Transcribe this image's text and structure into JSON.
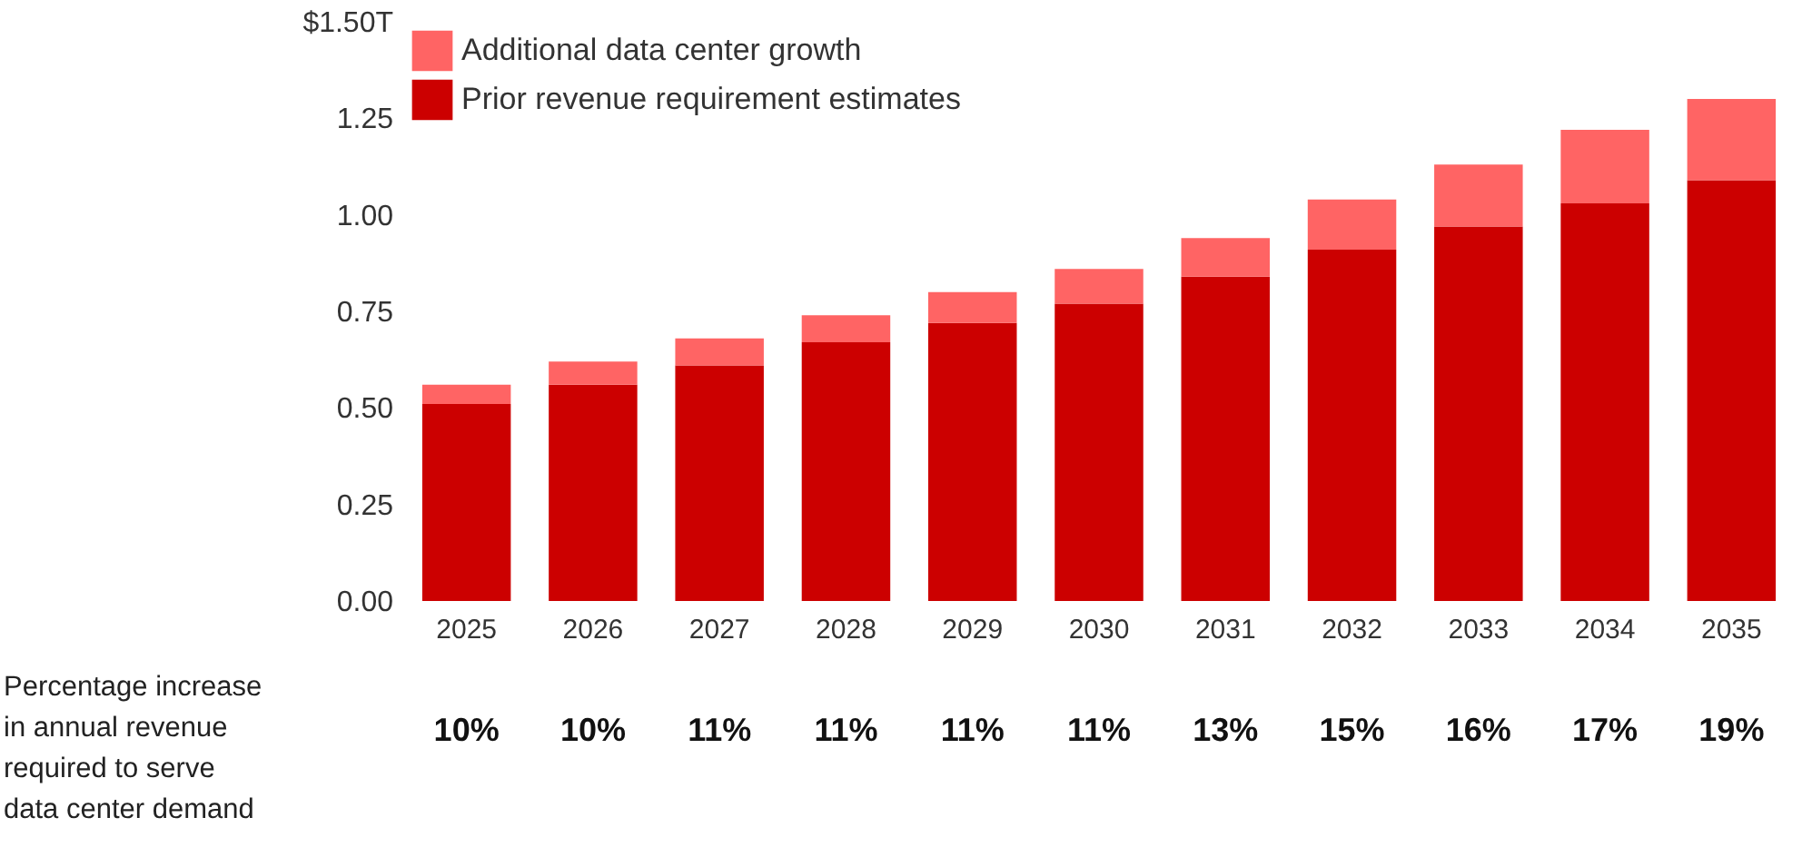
{
  "chart_data": {
    "type": "bar",
    "stacked": true,
    "legend": "top left",
    "grid": false,
    "categories": [
      "2025",
      "2026",
      "2027",
      "2028",
      "2029",
      "2030",
      "2031",
      "2032",
      "2033",
      "2034",
      "2035"
    ],
    "series": [
      {
        "name": "Prior revenue requirement estimates",
        "color": "#cc0000",
        "values": [
          0.51,
          0.56,
          0.61,
          0.67,
          0.72,
          0.77,
          0.84,
          0.91,
          0.97,
          1.03,
          1.09
        ]
      },
      {
        "name": "Additional data center growth",
        "color": "#ff6464",
        "values": [
          0.05,
          0.06,
          0.07,
          0.07,
          0.08,
          0.09,
          0.1,
          0.13,
          0.16,
          0.19,
          0.21
        ]
      }
    ],
    "ylim": [
      0,
      1.5
    ],
    "yticks": [
      {
        "value": 0,
        "label": "0.00"
      },
      {
        "value": 0.25,
        "label": "0.25"
      },
      {
        "value": 0.5,
        "label": "0.50"
      },
      {
        "value": 0.75,
        "label": "0.75"
      },
      {
        "value": 1,
        "label": "1.00"
      },
      {
        "value": 1.25,
        "label": "1.25"
      },
      {
        "value": 1.5,
        "label": "$1.50T"
      }
    ],
    "annotations": [
      "Percentage increase\nin annual revenue\nrequired to serve\ndata center demand",
      "10%",
      "10%",
      "11%",
      "11%",
      "11%",
      "11%",
      "13%",
      "15%",
      "16%",
      "17%",
      "19%"
    ]
  }
}
